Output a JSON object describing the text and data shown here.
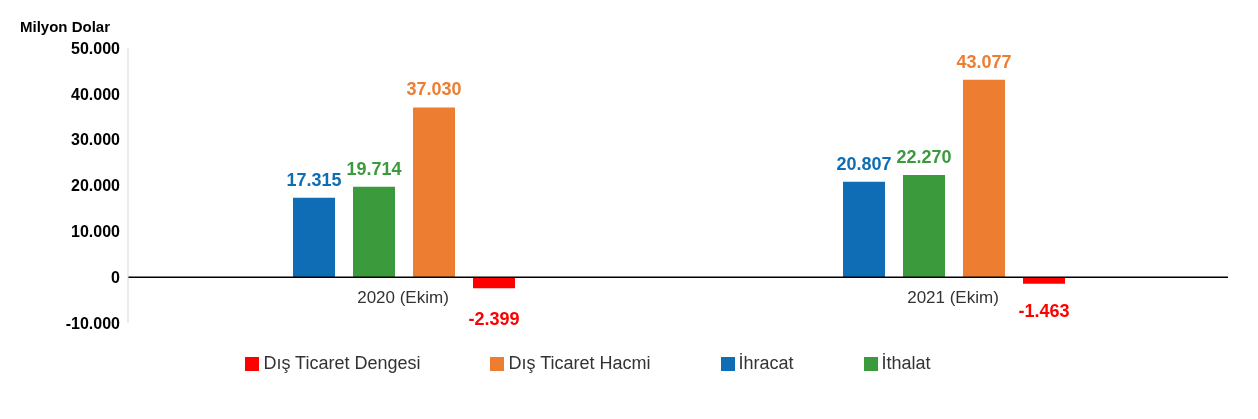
{
  "chart_data": {
    "type": "bar",
    "ylabel": "Milyon Dolar",
    "categories": [
      "2020 (Ekim)",
      "2021 (Ekim)"
    ],
    "series": [
      {
        "name": "İhracat",
        "color": "#0f6db5",
        "values": [
          17315,
          20807
        ],
        "value_labels": [
          "17.315",
          "20.807"
        ]
      },
      {
        "name": "İthalat",
        "color": "#3b9a3b",
        "values": [
          19714,
          22270
        ],
        "value_labels": [
          "19.714",
          "22.270"
        ]
      },
      {
        "name": "Dış Ticaret Hacmi",
        "color": "#ed7d31",
        "values": [
          37030,
          43077
        ],
        "value_labels": [
          "37.030",
          "43.077"
        ]
      },
      {
        "name": "Dış Ticaret Dengesi",
        "color": "#ff0000",
        "values": [
          -2399,
          -1463
        ],
        "value_labels": [
          "-2.399",
          "-1.463"
        ]
      }
    ],
    "ylim": [
      -10000,
      50000
    ],
    "yticks": [
      {
        "value": -10000,
        "label": "-10.000"
      },
      0,
      {
        "value": 10000,
        "label": "10.000"
      },
      {
        "value": 20000,
        "label": "20.000"
      },
      {
        "value": 30000,
        "label": "30.000"
      },
      {
        "value": 40000,
        "label": "40.000"
      },
      {
        "value": 50000,
        "label": "50.000"
      }
    ],
    "grid": false,
    "legend": "bottom"
  }
}
